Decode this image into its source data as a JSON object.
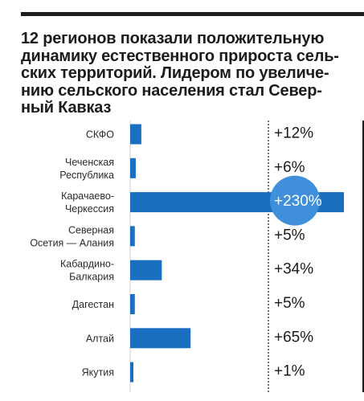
{
  "header": {
    "title": "12 регионов показали положительную динамику естественного прироста сель-ских территорий. Лидером по увеличе-нию сельского населения стал Север-ный Кавказ"
  },
  "colors": {
    "bar": "#1a6fc0",
    "highlight_circle": "#3f8fdb",
    "text": "#1c1c1c",
    "divider": "#1d1d1d",
    "grid": "#cfcfcf"
  },
  "chart_data": {
    "type": "bar",
    "orientation": "horizontal",
    "categories": [
      [
        "СКФО"
      ],
      [
        "Чеченская",
        "Республика"
      ],
      [
        "Карачаево-",
        "Черкессия"
      ],
      [
        "Северная",
        "Осетия — Алания"
      ],
      [
        "Кабардино-",
        "Балкария"
      ],
      [
        "Дагестан"
      ],
      [
        "Алтай"
      ],
      [
        "Якутия"
      ]
    ],
    "values": [
      12,
      6,
      230,
      5,
      34,
      5,
      65,
      1
    ],
    "value_labels": [
      "+12%",
      "+6%",
      "+230%",
      "+5%",
      "+34%",
      "+5%",
      "+65%",
      "+1%"
    ],
    "unit": "%",
    "highlighted_index": 2,
    "xlim": [
      0,
      230
    ],
    "title": "",
    "xlabel": "",
    "ylabel": "",
    "grid": false,
    "legend": "none"
  }
}
